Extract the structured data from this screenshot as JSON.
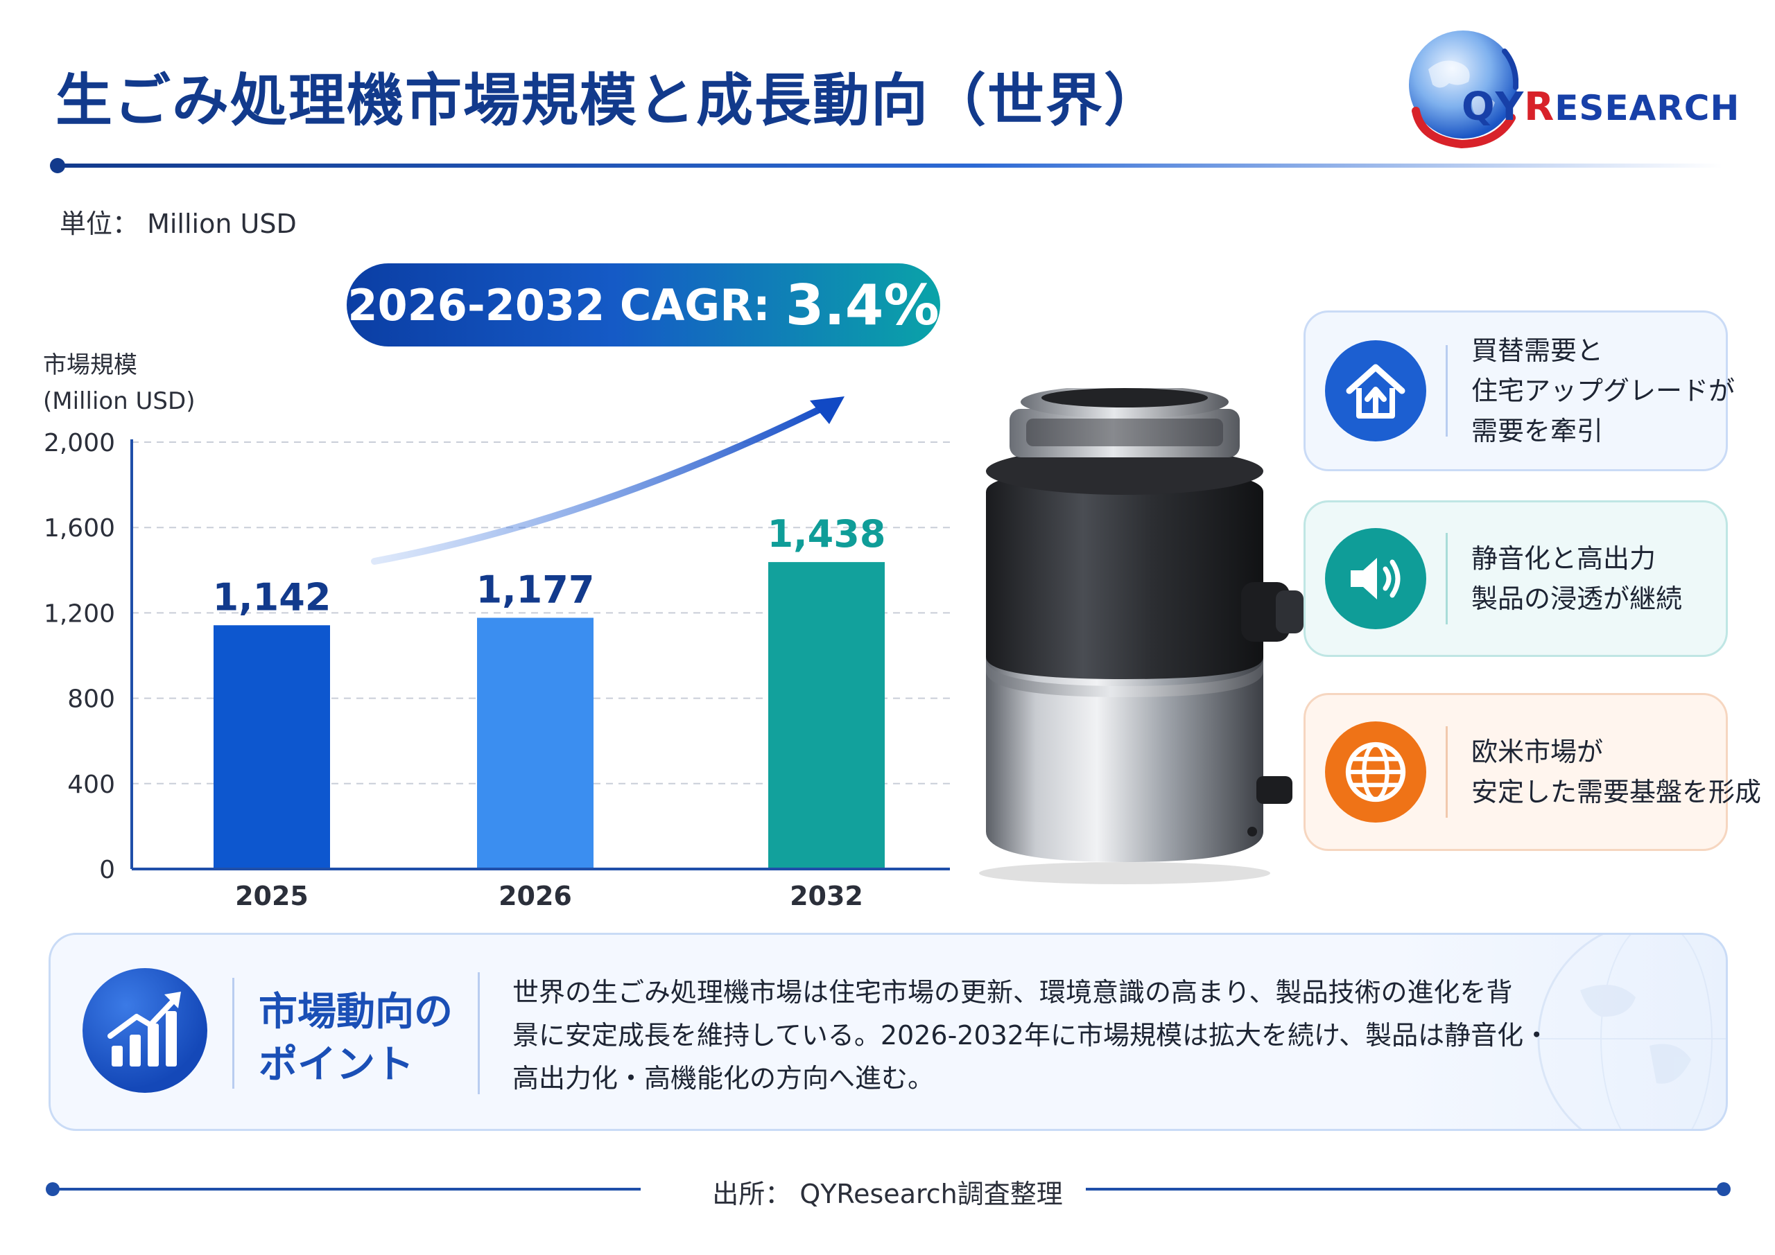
{
  "header": {
    "title": "生ごみ処理機市場規模と成長動向（世界）",
    "logo": {
      "qy": "QY",
      "r": "R",
      "rest": "ESEARCH"
    }
  },
  "unit_label": "単位： Million USD",
  "cagr": {
    "label": "2026-2032 CAGR:",
    "value": "3.4%"
  },
  "chart_data": {
    "type": "bar",
    "ylabel": "市場規模",
    "ylabel_unit": "(Million USD)",
    "categories": [
      "2025",
      "2026",
      "2032"
    ],
    "values": [
      1142,
      1177,
      1438
    ],
    "value_labels": [
      "1,142",
      "1,177",
      "1,438"
    ],
    "ylim": [
      0,
      2000
    ],
    "yticks": [
      0,
      400,
      800,
      1200,
      1600,
      2000
    ],
    "ytick_labels": [
      "0",
      "400",
      "800",
      "1,200",
      "1,600",
      "2,000"
    ],
    "colors": [
      "#0d57cf",
      "#3b8ef0",
      "#12a19c"
    ],
    "grid": true
  },
  "cards": [
    {
      "icon": "home-upgrade-icon",
      "lines": [
        "買替需要と",
        "住宅アップグレードが",
        "需要を牽引"
      ]
    },
    {
      "icon": "speaker-icon",
      "lines": [
        "静音化と高出力",
        "製品の浸透が継続"
      ]
    },
    {
      "icon": "globe-icon",
      "lines": [
        "欧米市場が",
        "安定した需要基盤を形成"
      ]
    }
  ],
  "points": {
    "title_lines": [
      "市場動向の",
      "ポイント"
    ],
    "body_lines": [
      "世界の生ごみ処理機市場は住宅市場の更新、環境意識の高まり、製品技術の進化を背",
      "景に安定成長を維持している。2026-2032年に市場規模は拡大を続け、製品は静音化・",
      "高出力化・高機能化の方向へ進む。"
    ]
  },
  "source": "出所： QYResearch調査整理",
  "colors": {
    "brand": "#123a8c",
    "accent_blue": "#1c5fd1",
    "accent_teal": "#0f9d98",
    "accent_orange": "#ef7317"
  }
}
